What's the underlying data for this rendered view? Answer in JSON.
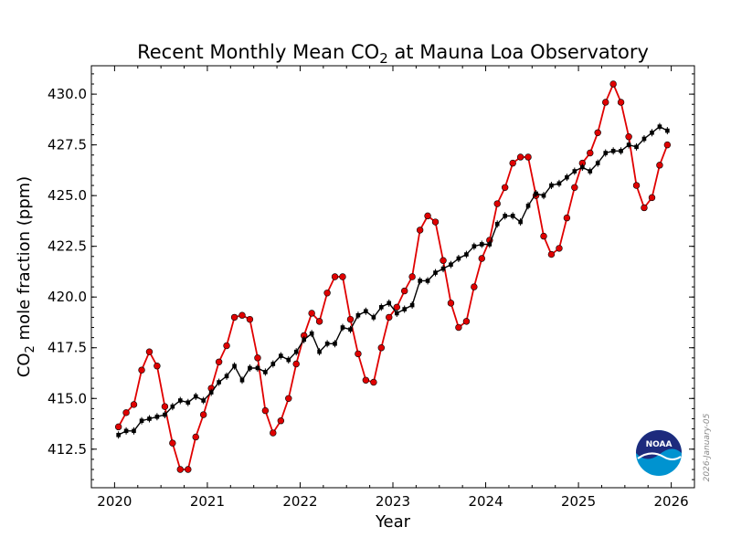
{
  "chart_data": {
    "type": "line",
    "title_prefix": "Recent Monthly Mean CO",
    "title_sub": "2",
    "title_suffix": " at Mauna Loa Observatory",
    "xlabel": "Year",
    "ylabel_prefix": "CO",
    "ylabel_sub": "2",
    "ylabel_suffix": " mole fraction (ppm)",
    "xlim": [
      2019.75,
      2026.25
    ],
    "ylim": [
      410.6,
      431.4
    ],
    "x_ticks": [
      2020,
      2021,
      2022,
      2023,
      2024,
      2025,
      2026
    ],
    "x_tick_labels": [
      "2020",
      "2021",
      "2022",
      "2023",
      "2024",
      "2025",
      "2026"
    ],
    "y_ticks": [
      412.5,
      415.0,
      417.5,
      420.0,
      422.5,
      425.0,
      427.5,
      430.0
    ],
    "y_tick_labels": [
      "412.5",
      "415.0",
      "417.5",
      "420.0",
      "422.5",
      "425.0",
      "427.5",
      "430.0"
    ],
    "grid": false,
    "series": [
      {
        "color": "#e00000",
        "marker": "circle",
        "x": [
          2020.042,
          2020.125,
          2020.208,
          2020.292,
          2020.375,
          2020.458,
          2020.542,
          2020.625,
          2020.708,
          2020.792,
          2020.875,
          2020.958,
          2021.042,
          2021.125,
          2021.208,
          2021.292,
          2021.375,
          2021.458,
          2021.542,
          2021.625,
          2021.708,
          2021.792,
          2021.875,
          2021.958,
          2022.042,
          2022.125,
          2022.208,
          2022.292,
          2022.375,
          2022.458,
          2022.542,
          2022.625,
          2022.708,
          2022.792,
          2022.875,
          2022.958,
          2023.042,
          2023.125,
          2023.208,
          2023.292,
          2023.375,
          2023.458,
          2023.542,
          2023.625,
          2023.708,
          2023.792,
          2023.875,
          2023.958,
          2024.042,
          2024.125,
          2024.208,
          2024.292,
          2024.375,
          2024.458,
          2024.542,
          2024.625,
          2024.708,
          2024.792,
          2024.875,
          2024.958,
          2025.042,
          2025.125,
          2025.208,
          2025.292,
          2025.375,
          2025.458,
          2025.542,
          2025.625,
          2025.708,
          2025.792,
          2025.875,
          2025.958
        ],
        "y": [
          413.6,
          414.3,
          414.7,
          416.4,
          417.3,
          416.6,
          414.6,
          412.8,
          411.5,
          411.5,
          413.1,
          414.2,
          415.5,
          416.8,
          417.6,
          419.0,
          419.1,
          418.9,
          417.0,
          414.4,
          413.3,
          413.9,
          415.0,
          416.7,
          418.1,
          419.2,
          418.8,
          420.2,
          421.0,
          421.0,
          418.9,
          417.2,
          415.9,
          415.8,
          417.5,
          419.0,
          419.5,
          420.3,
          421.0,
          423.3,
          424.0,
          423.7,
          421.8,
          419.7,
          418.5,
          418.8,
          420.5,
          421.9,
          422.8,
          424.6,
          425.4,
          426.6,
          426.9,
          426.9,
          425.0,
          423.0,
          422.1,
          422.4,
          423.9,
          425.4,
          426.6,
          427.1,
          428.1,
          429.6,
          430.5,
          429.6,
          427.9,
          425.5,
          424.4,
          424.9,
          426.5,
          427.5
        ]
      },
      {
        "color": "#000000",
        "marker": "square",
        "x": [
          2020.042,
          2020.125,
          2020.208,
          2020.292,
          2020.375,
          2020.458,
          2020.542,
          2020.625,
          2020.708,
          2020.792,
          2020.875,
          2020.958,
          2021.042,
          2021.125,
          2021.208,
          2021.292,
          2021.375,
          2021.458,
          2021.542,
          2021.625,
          2021.708,
          2021.792,
          2021.875,
          2021.958,
          2022.042,
          2022.125,
          2022.208,
          2022.292,
          2022.375,
          2022.458,
          2022.542,
          2022.625,
          2022.708,
          2022.792,
          2022.875,
          2022.958,
          2023.042,
          2023.125,
          2023.208,
          2023.292,
          2023.375,
          2023.458,
          2023.542,
          2023.625,
          2023.708,
          2023.792,
          2023.875,
          2023.958,
          2024.042,
          2024.125,
          2024.208,
          2024.292,
          2024.375,
          2024.458,
          2024.542,
          2024.625,
          2024.708,
          2024.792,
          2024.875,
          2024.958,
          2025.042,
          2025.125,
          2025.208,
          2025.292,
          2025.375,
          2025.458,
          2025.542,
          2025.625,
          2025.708,
          2025.792,
          2025.875,
          2025.958
        ],
        "y": [
          413.2,
          413.4,
          413.4,
          413.9,
          414.0,
          414.1,
          414.2,
          414.6,
          414.9,
          414.8,
          415.1,
          414.9,
          415.3,
          415.8,
          416.1,
          416.6,
          415.9,
          416.5,
          416.5,
          416.3,
          416.7,
          417.1,
          416.9,
          417.3,
          417.9,
          418.2,
          417.3,
          417.7,
          417.7,
          418.5,
          418.4,
          419.1,
          419.3,
          419.0,
          419.5,
          419.7,
          419.2,
          419.4,
          419.6,
          420.8,
          420.8,
          421.2,
          421.4,
          421.6,
          421.9,
          422.1,
          422.5,
          422.6,
          422.6,
          423.6,
          424.0,
          424.0,
          423.7,
          424.5,
          425.1,
          425.0,
          425.5,
          425.6,
          425.9,
          426.2,
          426.4,
          426.2,
          426.6,
          427.1,
          427.2,
          427.2,
          427.5,
          427.4,
          427.8,
          428.1,
          428.4,
          428.2
        ]
      }
    ],
    "annotation_side": "2026-January-05",
    "logo_text": "NOAA"
  }
}
